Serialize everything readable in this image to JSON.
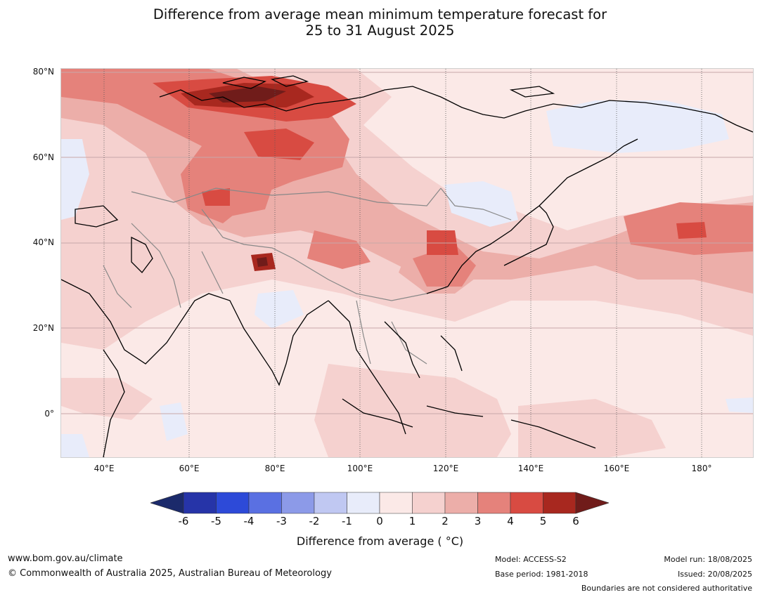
{
  "title": {
    "line1": "Difference from average mean minimum temperature forecast for",
    "line2": "25 to 31 August 2025"
  },
  "map": {
    "latitude_labels": [
      "80°N",
      "60°N",
      "40°N",
      "20°N",
      "0°"
    ],
    "longitude_labels": [
      "40°E",
      "60°E",
      "80°E",
      "100°E",
      "120°E",
      "140°E",
      "160°E",
      "180°"
    ],
    "extent": {
      "lon_min": 30,
      "lon_max": 192,
      "lat_min": -10,
      "lat_max": 81
    },
    "colors": {
      "cold_extreme": "#1b2a6b",
      "warm_extreme": "#701c1a",
      "land_outline": "#000000",
      "country_borders": "#888888",
      "gridlines": "#c7a8a8"
    }
  },
  "colorbar": {
    "ticks": [
      "-6",
      "-5",
      "-4",
      "-3",
      "-2",
      "-1",
      "0",
      "1",
      "2",
      "3",
      "4",
      "5",
      "6"
    ],
    "colors": [
      "#2634a8",
      "#2d4ad8",
      "#5a70e2",
      "#8c9ae8",
      "#c0c8f2",
      "#e8ecfa",
      "#fbe9e7",
      "#f5d1cf",
      "#ecaea9",
      "#e5827b",
      "#d84b42",
      "#a8281f"
    ],
    "extend_low_color": "#1b2a6b",
    "extend_high_color": "#701c1a",
    "label": "Difference from average ( °C)"
  },
  "footer": {
    "website": "www.bom.gov.au/climate",
    "copyright": "© Commonwealth of Australia 2025, Australian Bureau of Meteorology",
    "model": "Model: ACCESS-S2",
    "base_period": "Base period: 1981-2018",
    "model_run": "Model run: 18/08/2025",
    "issued": "Issued: 20/08/2025",
    "boundaries_note": "Boundaries are not considered authoritative"
  }
}
